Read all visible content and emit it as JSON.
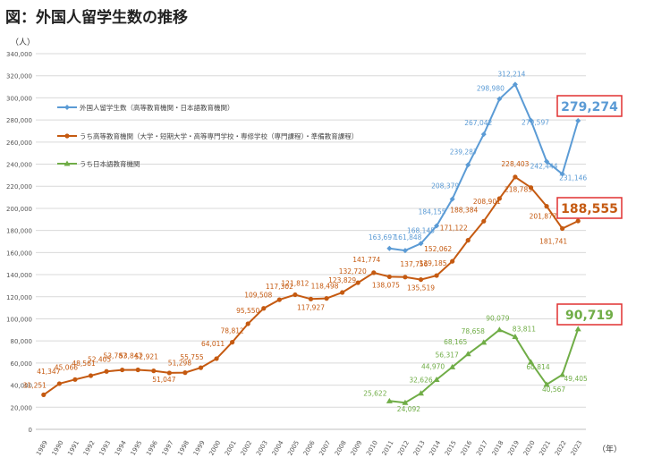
{
  "title": "図：外国人留学生数の推移",
  "chart_data": {
    "type": "line",
    "title": "図：外国人留学生数の推移",
    "ylabel": "（人）",
    "xlabel": "（年）",
    "ylim": [
      0,
      340000
    ],
    "yticks": [
      "0",
      "20,000",
      "40,000",
      "60,000",
      "80,000",
      "100,000",
      "120,000",
      "140,000",
      "160,000",
      "180,000",
      "200,000",
      "220,000",
      "240,000",
      "260,000",
      "280,000",
      "300,000",
      "320,000",
      "340,000"
    ],
    "grid": true,
    "legend_placement": "top-left",
    "categories": [
      "1989",
      "1990",
      "1991",
      "1992",
      "1993",
      "1994",
      "1995",
      "1996",
      "1997",
      "1998",
      "1999",
      "2000",
      "2001",
      "2002",
      "2003",
      "2004",
      "2005",
      "2006",
      "2007",
      "2008",
      "2009",
      "2010",
      "2011",
      "2012",
      "2013",
      "2014",
      "2015",
      "2016",
      "2017",
      "2018",
      "2019",
      "2020",
      "2021",
      "2022",
      "2023"
    ],
    "series": [
      {
        "name": "外国人留学生数（高等教育機関・日本語教育機関）",
        "color": "#5b9bd5",
        "marker": "diamond",
        "values": [
          null,
          null,
          null,
          null,
          null,
          null,
          null,
          null,
          null,
          null,
          null,
          null,
          null,
          null,
          null,
          null,
          null,
          null,
          null,
          null,
          null,
          null,
          163697,
          161848,
          168145,
          184155,
          208379,
          239287,
          267042,
          298980,
          312214,
          279597,
          242444,
          231146,
          279274
        ],
        "labels": [
          "",
          "",
          "",
          "",
          "",
          "",
          "",
          "",
          "",
          "",
          "",
          "",
          "",
          "",
          "",
          "",
          "",
          "",
          "",
          "",
          "",
          "",
          "163,697",
          "161,848",
          "168,145",
          "184,155",
          "208,379",
          "239,287",
          "267,042",
          "298,980",
          "312,214",
          "279,597",
          "242,444",
          "231,146",
          ""
        ],
        "highlight": "279,274"
      },
      {
        "name": "うち高等教育機関（大学・短期大学・高等専門学校・専修学校（専門課程）・準備教育課程）",
        "color": "#c55a11",
        "marker": "circle",
        "values": [
          31251,
          41347,
          45066,
          48561,
          52405,
          53787,
          53847,
          52921,
          51047,
          51298,
          55755,
          64011,
          78812,
          95550,
          109508,
          117302,
          121812,
          117927,
          118498,
          123829,
          132720,
          141774,
          138075,
          137756,
          135519,
          139185,
          152062,
          171122,
          188384,
          208901,
          228403,
          218783,
          201877,
          181741,
          188555
        ],
        "labels": [
          "31,251",
          "41,347",
          "45,066",
          "48,561",
          "52,405",
          "53,787",
          "53,847",
          "52,921",
          "51,047",
          "51,298",
          "55,755",
          "64,011",
          "78,812",
          "95,550",
          "109,508",
          "117,302",
          "121,812",
          "117,927",
          "118,498",
          "123,829",
          "132,720",
          "141,774",
          "138,075",
          "137,756",
          "135,519",
          "139,185",
          "152,062",
          "171,122",
          "188,384",
          "208,901",
          "228,403",
          "218,783",
          "201,877",
          "181,741",
          ""
        ],
        "highlight": "188,555"
      },
      {
        "name": "うち日本語教育機関",
        "color": "#70ad47",
        "marker": "triangle",
        "values": [
          null,
          null,
          null,
          null,
          null,
          null,
          null,
          null,
          null,
          null,
          null,
          null,
          null,
          null,
          null,
          null,
          null,
          null,
          null,
          null,
          null,
          null,
          25622,
          24092,
          32626,
          44970,
          56317,
          68165,
          78658,
          90079,
          83811,
          60814,
          40567,
          49405,
          90719
        ],
        "labels": [
          "",
          "",
          "",
          "",
          "",
          "",
          "",
          "",
          "",
          "",
          "",
          "",
          "",
          "",
          "",
          "",
          "",
          "",
          "",
          "",
          "",
          "",
          "25,622",
          "24,092",
          "32,626",
          "44,970",
          "56,317",
          "68,165",
          "78,658",
          "90,079",
          "83,811",
          "60,814",
          "40,567",
          "49,405",
          ""
        ],
        "highlight": "90,719"
      }
    ]
  }
}
